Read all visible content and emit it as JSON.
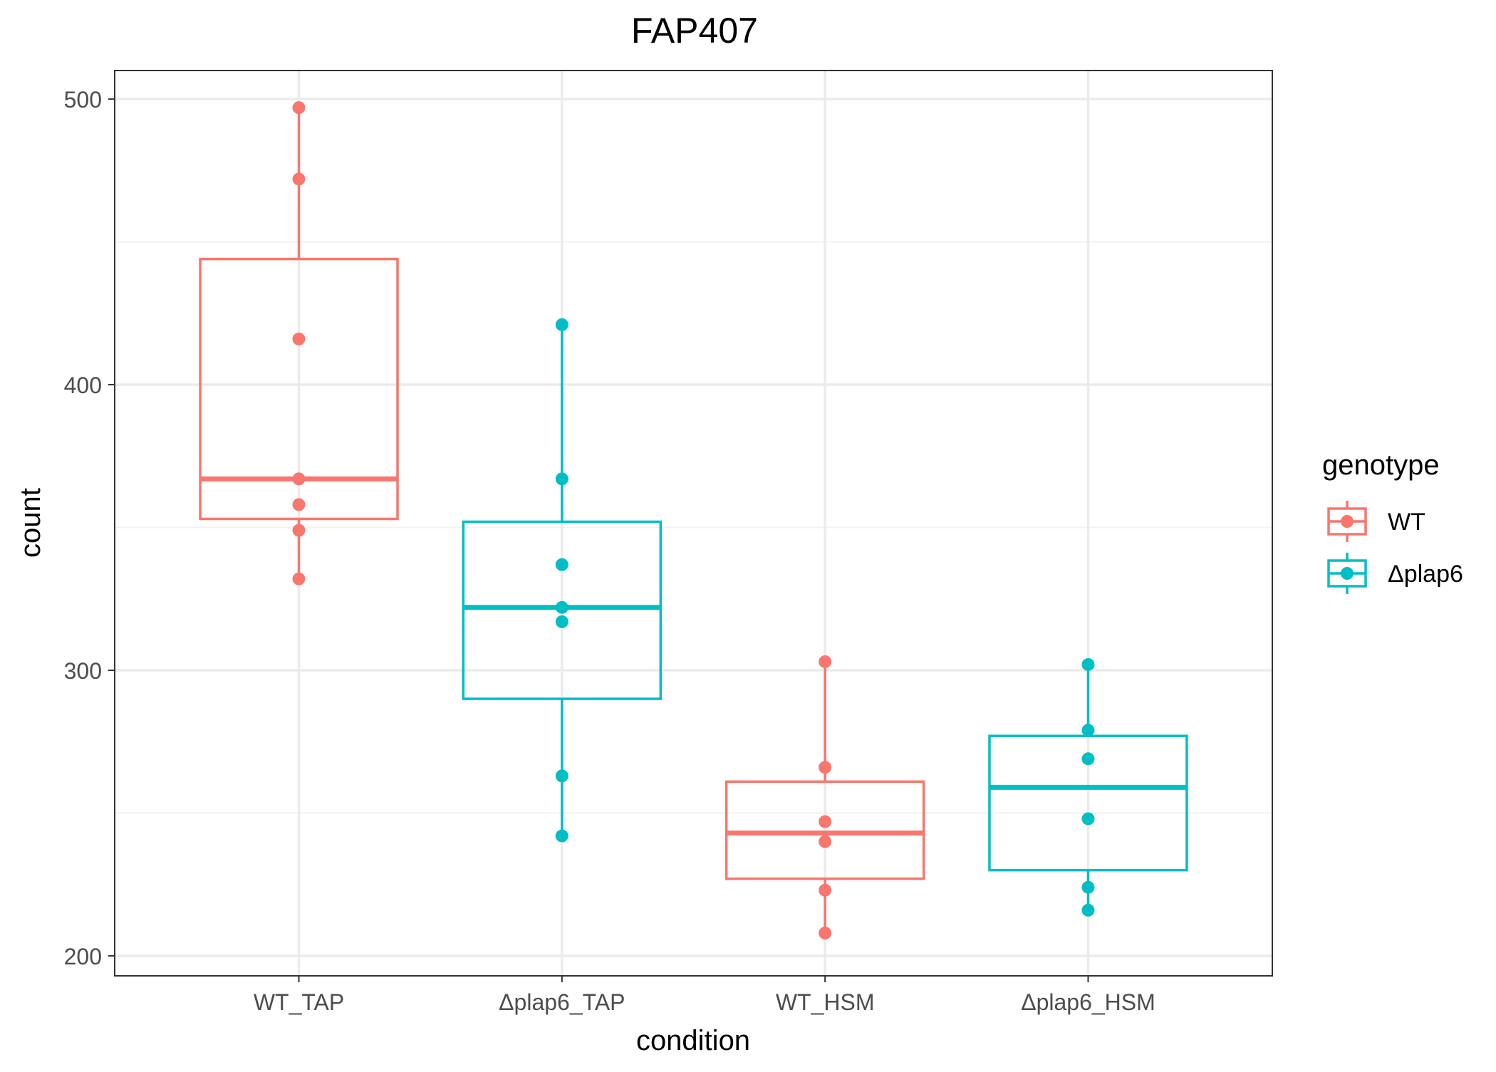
{
  "chart_data": {
    "type": "boxplot",
    "title": "FAP407",
    "xlabel": "condition",
    "ylabel": "count",
    "categories": [
      "WT_TAP",
      "Δplap6_TAP",
      "WT_HSM",
      "Δplap6_HSM"
    ],
    "ylim": [
      193,
      510
    ],
    "yticks": [
      200,
      300,
      400,
      500
    ],
    "grid": true,
    "legend": {
      "title": "genotype",
      "position": "right",
      "entries": [
        {
          "label": "WT",
          "color": "#F8766D"
        },
        {
          "label": "Δplap6",
          "color": "#00BFC4"
        }
      ]
    },
    "boxes": [
      {
        "category": "WT_TAP",
        "genotype": "WT",
        "color": "#F8766D",
        "whisker_low": 332,
        "q1": 353,
        "median": 367,
        "q3": 444,
        "whisker_high": 497,
        "points": [
          497,
          472,
          416,
          367,
          358,
          349,
          332
        ]
      },
      {
        "category": "Δplap6_TAP",
        "genotype": "Δplap6",
        "color": "#00BFC4",
        "whisker_low": 242,
        "q1": 290,
        "median": 322,
        "q3": 352,
        "whisker_high": 421,
        "points": [
          421,
          367,
          337,
          322,
          317,
          263,
          242
        ]
      },
      {
        "category": "WT_HSM",
        "genotype": "WT",
        "color": "#F8766D",
        "whisker_low": 208,
        "q1": 227,
        "median": 243,
        "q3": 261,
        "whisker_high": 303,
        "points": [
          303,
          266,
          247,
          240,
          223,
          208
        ]
      },
      {
        "category": "Δplap6_HSM",
        "genotype": "Δplap6",
        "color": "#00BFC4",
        "whisker_low": 216,
        "q1": 230,
        "median": 259,
        "q3": 277,
        "whisker_high": 302,
        "points": [
          302,
          279,
          269,
          248,
          224,
          216
        ]
      }
    ]
  }
}
